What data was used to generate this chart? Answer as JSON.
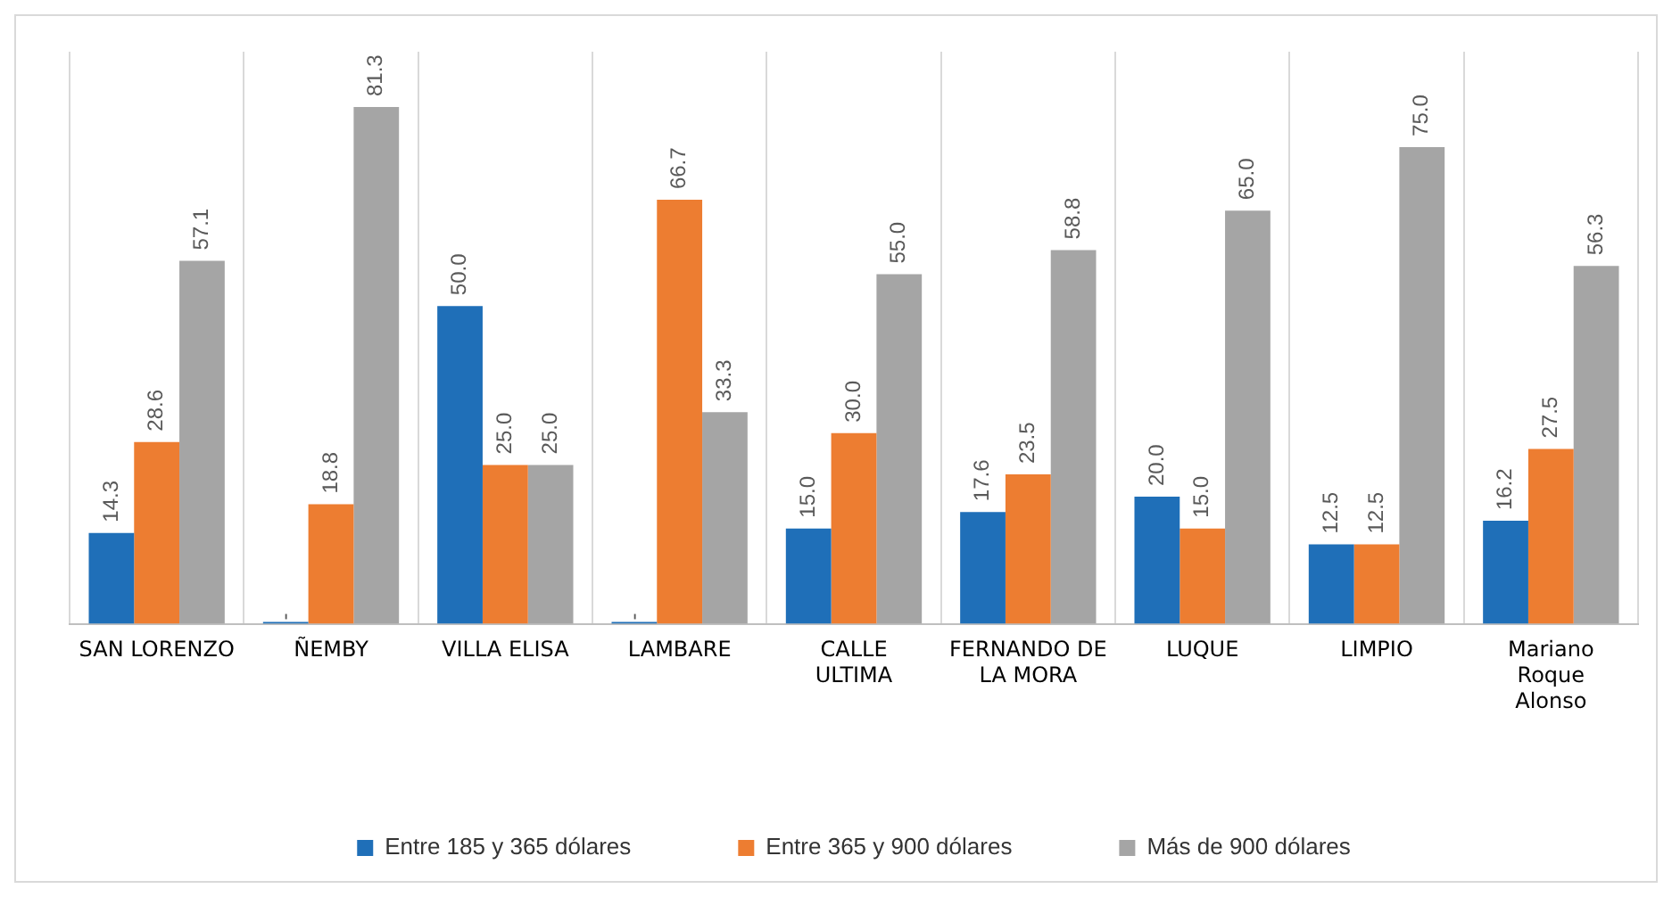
{
  "chart_data": {
    "type": "bar",
    "categories": [
      "SAN LORENZO",
      "ÑEMBY",
      "VILLA ELISA",
      "LAMBARE",
      "CALLE ULTIMA",
      "FERNANDO DE LA MORA",
      "LUQUE",
      "LIMPIO",
      "Mariano Roque Alonso"
    ],
    "series": [
      {
        "name": "Entre 185 y 365 dólares",
        "color": "#1f6fb8",
        "values": [
          14.3,
          0,
          50.0,
          0,
          15.0,
          17.6,
          20.0,
          12.5,
          16.2
        ],
        "value_labels": [
          "14.3",
          "-",
          "50.0",
          "-",
          "15.0",
          "17.6",
          "20.0",
          "12.5",
          "16.2"
        ]
      },
      {
        "name": "Entre 365 y 900 dólares",
        "color": "#ed7d31",
        "values": [
          28.6,
          18.8,
          25.0,
          66.7,
          30.0,
          23.5,
          15.0,
          12.5,
          27.5
        ],
        "value_labels": [
          "28.6",
          "18.8",
          "25.0",
          "66.7",
          "30.0",
          "23.5",
          "15.0",
          "12.5",
          "27.5"
        ]
      },
      {
        "name": "Más de 900 dólares",
        "color": "#a5a5a5",
        "values": [
          57.1,
          81.3,
          25.0,
          33.3,
          55.0,
          58.8,
          65.0,
          75.0,
          56.3
        ],
        "value_labels": [
          "57.1",
          "81.3",
          "25.0",
          "33.3",
          "55.0",
          "58.8",
          "65.0",
          "75.0",
          "56.3"
        ]
      }
    ],
    "ylim": [
      0,
      90
    ],
    "tick_labels": "x",
    "grid": "x",
    "legend": "bottom"
  }
}
